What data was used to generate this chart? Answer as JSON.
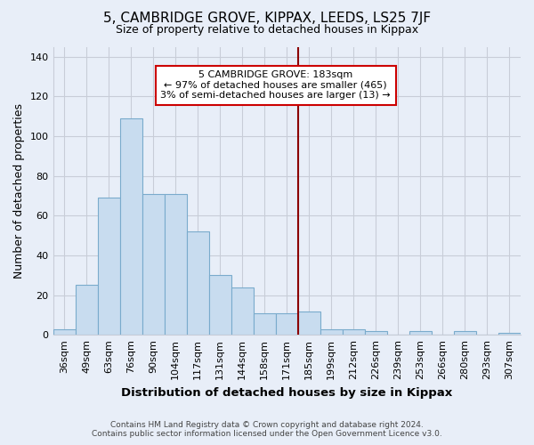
{
  "title": "5, CAMBRIDGE GROVE, KIPPAX, LEEDS, LS25 7JF",
  "subtitle": "Size of property relative to detached houses in Kippax",
  "xlabel": "Distribution of detached houses by size in Kippax",
  "ylabel": "Number of detached properties",
  "footer_line1": "Contains HM Land Registry data © Crown copyright and database right 2024.",
  "footer_line2": "Contains public sector information licensed under the Open Government Licence v3.0.",
  "bin_labels": [
    "36sqm",
    "49sqm",
    "63sqm",
    "76sqm",
    "90sqm",
    "104sqm",
    "117sqm",
    "131sqm",
    "144sqm",
    "158sqm",
    "171sqm",
    "185sqm",
    "199sqm",
    "212sqm",
    "226sqm",
    "239sqm",
    "253sqm",
    "266sqm",
    "280sqm",
    "293sqm",
    "307sqm"
  ],
  "bar_values": [
    3,
    25,
    69,
    109,
    71,
    71,
    52,
    30,
    24,
    11,
    11,
    12,
    3,
    3,
    2,
    0,
    2,
    0,
    2,
    0,
    1
  ],
  "bar_color": "#c8dcef",
  "bar_edge_color": "#7aabcc",
  "vline_x_index": 11,
  "vline_color": "#8b0000",
  "annotation_title": "5 CAMBRIDGE GROVE: 183sqm",
  "annotation_line1": "← 97% of detached houses are smaller (465)",
  "annotation_line2": "3% of semi-detached houses are larger (13) →",
  "annotation_box_color": "white",
  "annotation_box_edge": "#cc0000",
  "yticks": [
    0,
    20,
    40,
    60,
    80,
    100,
    120,
    140
  ],
  "ylim": [
    0,
    145
  ],
  "background_color": "#e8eef8",
  "grid_color": "#c8cdd8"
}
